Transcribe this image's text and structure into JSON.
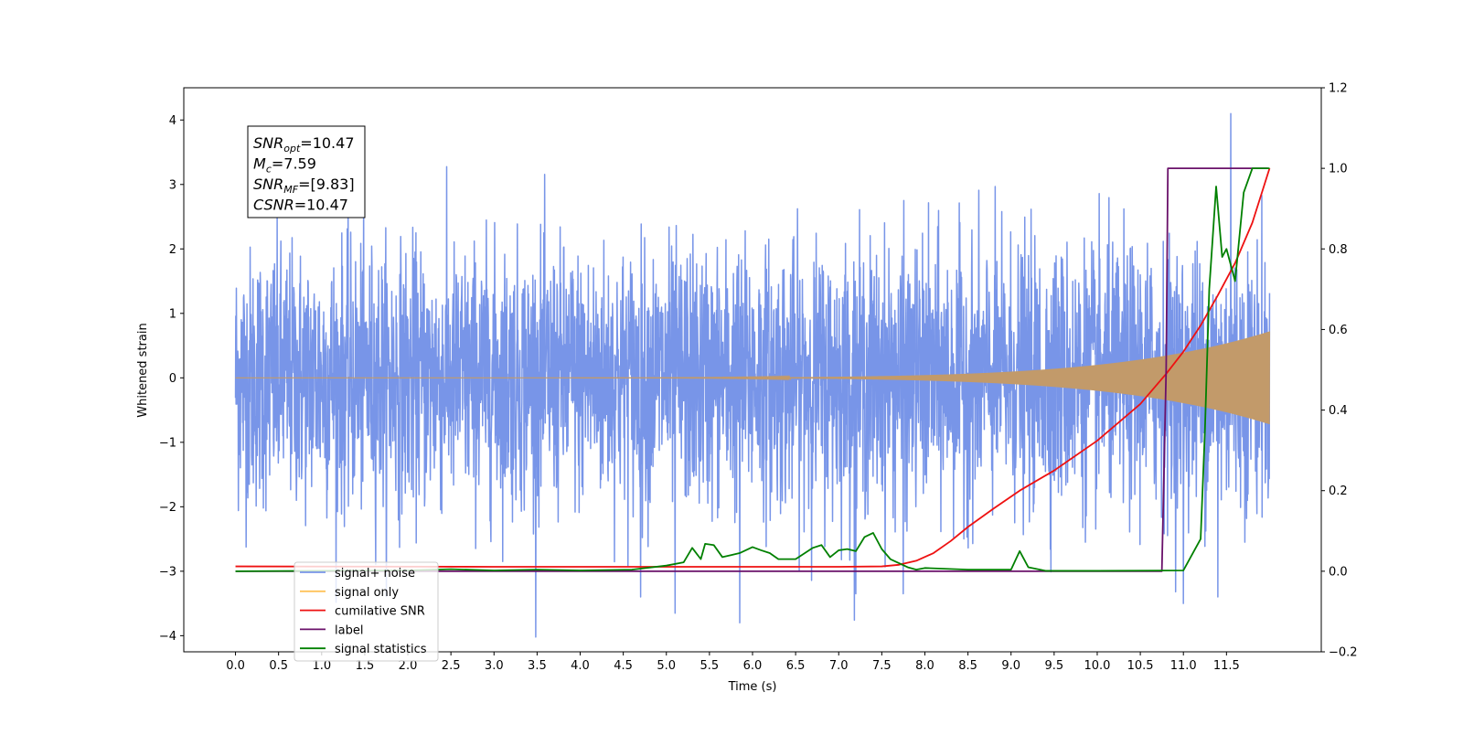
{
  "chart_data": {
    "type": "line",
    "title": "",
    "xlabel": "Time (s)",
    "ylabel": "Whitened strain",
    "xlim": [
      -0.6,
      12.6
    ],
    "ylim": [
      -4.25,
      4.5
    ],
    "y2lim": [
      -0.2,
      1.2
    ],
    "x_ticks": [
      "0.0",
      "0.5",
      "1.0",
      "1.5",
      "2.0",
      "2.5",
      "3.0",
      "3.5",
      "4.0",
      "4.5",
      "5.0",
      "5.5",
      "6.0",
      "6.5",
      "7.0",
      "7.5",
      "8.0",
      "8.5",
      "9.0",
      "9.5",
      "10.0",
      "10.5",
      "11.0",
      "11.5"
    ],
    "x_tick_values": [
      0,
      0.5,
      1,
      1.5,
      2,
      2.5,
      3,
      3.5,
      4,
      4.5,
      5,
      5.5,
      6,
      6.5,
      7,
      7.5,
      8,
      8.5,
      9,
      9.5,
      10,
      10.5,
      11,
      11.5
    ],
    "y_ticks": [
      "−4",
      "−3",
      "−2",
      "−1",
      "0",
      "1",
      "2",
      "3",
      "4"
    ],
    "y_tick_values": [
      -4,
      -3,
      -2,
      -1,
      0,
      1,
      2,
      3,
      4
    ],
    "y2_ticks": [
      "−0.2",
      "0.0",
      "0.2",
      "0.4",
      "0.6",
      "0.8",
      "1.0",
      "1.2"
    ],
    "y2_tick_values": [
      -0.2,
      0,
      0.2,
      0.4,
      0.6,
      0.8,
      1.0,
      1.2
    ],
    "legend_position": "lower-left",
    "annotation": {
      "lines": [
        {
          "base": "SNR",
          "sub": "opt",
          "rest": "=10.47"
        },
        {
          "base": "M",
          "sub": "c",
          "rest": "=7.59"
        },
        {
          "base": "SNR",
          "sub": "MF",
          "rest": "=[9.83]"
        },
        {
          "base": "CSNR",
          "sub": "",
          "rest": "=10.47"
        }
      ]
    },
    "series": [
      {
        "name": "signal+ noise",
        "color": "#7895e8",
        "axis": "left",
        "kind": "noise",
        "x_start": 0.0,
        "x_end": 12.0,
        "noise_std": 1.0,
        "spikes": [
          [
            5.85,
            -3.8
          ],
          [
            11.55,
            4.1
          ],
          [
            11.0,
            -3.5
          ],
          [
            11.4,
            -3.4
          ],
          [
            5.1,
            -3.65
          ],
          [
            4.7,
            -3.4
          ],
          [
            7.2,
            -3.35
          ],
          [
            7.75,
            -3.35
          ]
        ]
      },
      {
        "name": "signal only",
        "color": "#c29a6a",
        "legend_color": "#ffc35a",
        "axis": "left",
        "kind": "chirp",
        "x_start": 0.0,
        "x_end": 12.0,
        "amp_end": 0.72
      },
      {
        "name": "cumilative SNR",
        "color": "#ee1111",
        "axis": "right",
        "x": [
          0,
          3,
          6,
          7,
          7.5,
          7.7,
          7.9,
          8.1,
          8.3,
          8.5,
          8.8,
          9.1,
          9.5,
          10.0,
          10.5,
          10.8,
          11.0,
          11.2,
          11.4,
          11.6,
          11.8,
          12.0
        ],
        "y": [
          0.012,
          0.011,
          0.011,
          0.011,
          0.012,
          0.016,
          0.026,
          0.045,
          0.075,
          0.11,
          0.156,
          0.2,
          0.25,
          0.324,
          0.415,
          0.49,
          0.545,
          0.61,
          0.685,
          0.765,
          0.865,
          1.0
        ]
      },
      {
        "name": "label",
        "color": "#6a116a",
        "axis": "right",
        "x": [
          0,
          10.75,
          10.8,
          10.82,
          11.98
        ],
        "y": [
          0,
          0,
          0.5,
          1.0,
          1.0
        ]
      },
      {
        "name": "signal statistics",
        "color": "#008000",
        "axis": "right",
        "x": [
          0,
          2,
          2.5,
          3,
          3.5,
          4,
          4.6,
          5.0,
          5.2,
          5.3,
          5.4,
          5.45,
          5.55,
          5.65,
          5.75,
          5.85,
          6.0,
          6.1,
          6.2,
          6.3,
          6.5,
          6.7,
          6.8,
          6.9,
          7.0,
          7.1,
          7.2,
          7.3,
          7.4,
          7.5,
          7.6,
          7.7,
          7.8,
          7.9,
          8.0,
          8.5,
          9.0,
          9.1,
          9.2,
          9.4,
          10,
          11,
          11.2,
          11.25,
          11.3,
          11.38,
          11.45,
          11.5,
          11.6,
          11.7,
          11.8,
          11.9,
          12.0
        ],
        "y": [
          0,
          0.002,
          0.005,
          0.002,
          0.004,
          0.002,
          0.004,
          0.014,
          0.022,
          0.058,
          0.03,
          0.068,
          0.065,
          0.035,
          0.04,
          0.045,
          0.06,
          0.052,
          0.045,
          0.03,
          0.03,
          0.058,
          0.065,
          0.035,
          0.052,
          0.055,
          0.05,
          0.085,
          0.095,
          0.055,
          0.03,
          0.02,
          0.01,
          0.004,
          0.008,
          0.004,
          0.004,
          0.05,
          0.01,
          0.001,
          0.001,
          0.002,
          0.08,
          0.35,
          0.7,
          0.955,
          0.78,
          0.8,
          0.72,
          0.94,
          1.0,
          1.0,
          1.0
        ]
      }
    ]
  }
}
